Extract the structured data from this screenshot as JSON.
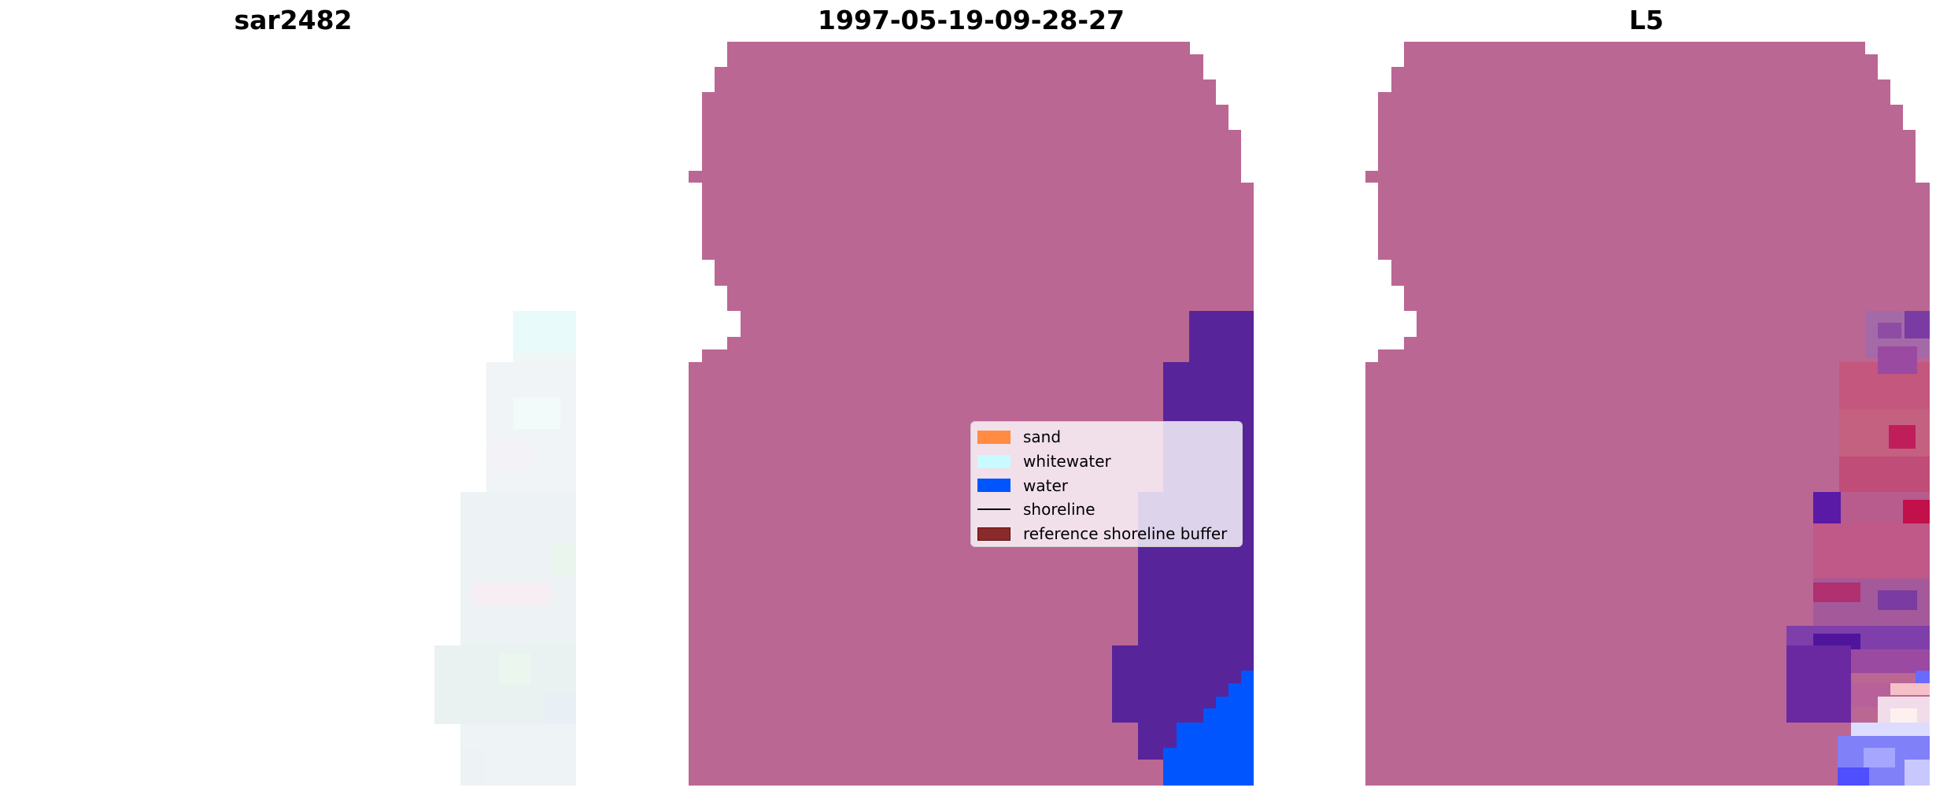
{
  "panels": [
    {
      "title": "sar2482"
    },
    {
      "title": "1997-05-19-09-28-27"
    },
    {
      "title": "L5"
    }
  ],
  "legend": {
    "items": [
      {
        "label": "sand",
        "kind": "patch",
        "color": "#ff8c42"
      },
      {
        "label": "whitewater",
        "kind": "patch",
        "color": "#c8faff"
      },
      {
        "label": "water",
        "kind": "patch",
        "color": "#0055ff"
      },
      {
        "label": "shoreline",
        "kind": "line",
        "color": "#000000"
      },
      {
        "label": "reference shoreline buffer",
        "kind": "patch",
        "color": "#8b2a2a"
      }
    ]
  },
  "colors": {
    "buffer_overlay": "#bb6794",
    "whitewater_overlay": "#57249a",
    "water": "#0055ff",
    "rgb_pale": "#eef3f5"
  }
}
